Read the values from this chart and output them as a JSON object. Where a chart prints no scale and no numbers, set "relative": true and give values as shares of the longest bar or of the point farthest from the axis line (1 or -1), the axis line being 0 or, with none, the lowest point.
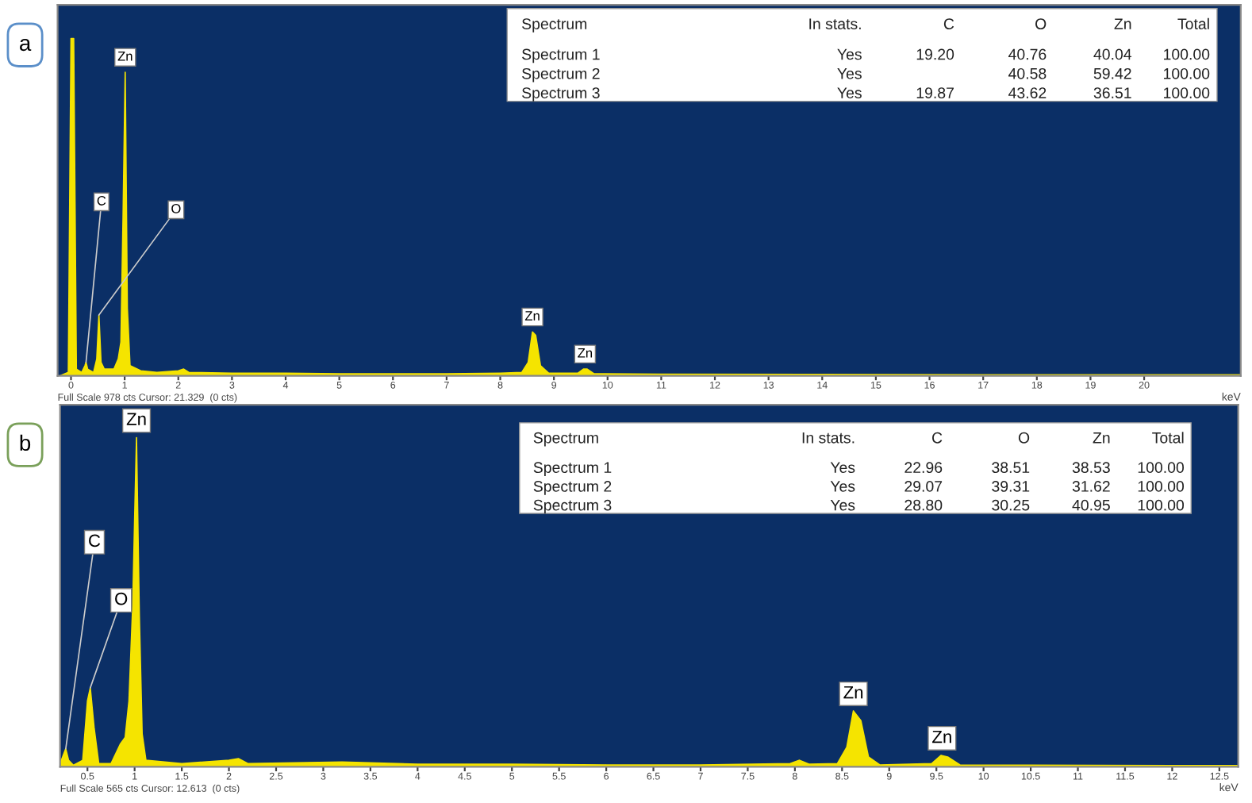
{
  "chart_data": [
    {
      "type": "area",
      "title": "a",
      "xlabel": "keV",
      "relative": true,
      "grid": false,
      "xlim": [
        -0.25,
        21.8
      ],
      "xticks": [
        0,
        1,
        2,
        3,
        4,
        5,
        6,
        7,
        8,
        9,
        10,
        11,
        12,
        13,
        14,
        15,
        16,
        17,
        18,
        19,
        20
      ],
      "series": [
        {
          "color": "#f5e400",
          "x": [
            -0.2,
            -0.05,
            0.0,
            0.05,
            0.1,
            0.2,
            0.26,
            0.28,
            0.31,
            0.42,
            0.48,
            0.52,
            0.56,
            0.62,
            0.8,
            0.88,
            0.93,
            0.97,
            1.01,
            1.05,
            1.1,
            1.3,
            1.6,
            2.0,
            2.1,
            2.2,
            3,
            4,
            5,
            6,
            7,
            8.0,
            8.4,
            8.52,
            8.6,
            8.66,
            8.75,
            8.9,
            9.45,
            9.55,
            9.62,
            9.75,
            11,
            14,
            17,
            20,
            21.8
          ],
          "values": [
            0,
            0.01,
            1.0,
            1.0,
            0.02,
            0.01,
            0.03,
            0.04,
            0.02,
            0.01,
            0.05,
            0.18,
            0.04,
            0.02,
            0.02,
            0.05,
            0.1,
            0.47,
            0.9,
            0.2,
            0.03,
            0.015,
            0.01,
            0.015,
            0.02,
            0.01,
            0.008,
            0.008,
            0.006,
            0.006,
            0.006,
            0.008,
            0.01,
            0.04,
            0.13,
            0.12,
            0.03,
            0.008,
            0.008,
            0.02,
            0.02,
            0.006,
            0.005,
            0.004,
            0.003,
            0.003,
            0.003
          ]
        }
      ],
      "annotations": [
        {
          "text": "Zn",
          "x": 1.01,
          "y": 0.9
        },
        {
          "text": "C",
          "x": 0.28,
          "y": 0.04
        },
        {
          "text": "O",
          "x": 0.52,
          "y": 0.18
        },
        {
          "text": "Zn",
          "x": 8.6,
          "y": 0.13
        },
        {
          "text": "Zn",
          "x": 9.58,
          "y": 0.02
        },
        "Full Scale 978 cts Cursor: 21.329  (0 cts)",
        "Spectrum\tIn stats.\tC\tO\tZn\tTotal",
        "Spectrum 1\tYes\t19.20\t40.76\t40.04\t100.00",
        "Spectrum 2\tYes\t\t40.58\t59.42\t100.00",
        "Spectrum 3\tYes\t19.87\t43.62\t36.51\t100.00"
      ]
    },
    {
      "type": "area",
      "title": "b",
      "xlabel": "keV",
      "relative": true,
      "grid": false,
      "xlim": [
        0.21,
        12.7
      ],
      "xticks": [
        0.5,
        1,
        1.5,
        2,
        2.5,
        3,
        3.5,
        4,
        4.5,
        5,
        5.5,
        6,
        6.5,
        7,
        7.5,
        8,
        8.5,
        9,
        9.5,
        10,
        10.5,
        11,
        11.5,
        12,
        12.5
      ],
      "series": [
        {
          "color": "#f5e400",
          "x": [
            0.21,
            0.25,
            0.27,
            0.3,
            0.35,
            0.45,
            0.5,
            0.53,
            0.57,
            0.62,
            0.75,
            0.85,
            0.9,
            0.94,
            0.98,
            1.0,
            1.02,
            1.05,
            1.08,
            1.12,
            1.5,
            2.0,
            2.1,
            2.2,
            3.2,
            4,
            5,
            6,
            7,
            7.95,
            8.05,
            8.15,
            8.45,
            8.55,
            8.62,
            8.7,
            8.78,
            8.9,
            9.45,
            9.55,
            9.62,
            9.75,
            10.5,
            12,
            12.7
          ],
          "values": [
            0.01,
            0.04,
            0.055,
            0.02,
            0.005,
            0.02,
            0.2,
            0.24,
            0.12,
            0.01,
            0.01,
            0.07,
            0.09,
            0.2,
            0.49,
            0.75,
            1.0,
            0.46,
            0.1,
            0.02,
            0.01,
            0.02,
            0.025,
            0.01,
            0.015,
            0.008,
            0.008,
            0.006,
            0.006,
            0.01,
            0.02,
            0.008,
            0.01,
            0.06,
            0.17,
            0.14,
            0.03,
            0.006,
            0.01,
            0.035,
            0.03,
            0.006,
            0.005,
            0.004,
            0.004
          ]
        }
      ],
      "annotations": [
        {
          "text": "Zn",
          "x": 1.02,
          "y": 1.0
        },
        {
          "text": "C",
          "x": 0.27,
          "y": 0.055
        },
        {
          "text": "O",
          "x": 0.53,
          "y": 0.24
        },
        {
          "text": "Zn",
          "x": 8.62,
          "y": 0.17
        },
        {
          "text": "Zn",
          "x": 9.56,
          "y": 0.035
        },
        "Full Scale 565 cts Cursor: 12.613  (0 cts)",
        "Spectrum\tIn stats.\tC\tO\tZn\tTotal",
        "Spectrum 1\tYes\t22.96\t38.51\t38.53\t100.00",
        "Spectrum 2\tYes\t29.07\t39.31\t31.62\t100.00",
        "Spectrum 3\tYes\t28.80\t30.25\t40.95\t100.00"
      ]
    }
  ]
}
